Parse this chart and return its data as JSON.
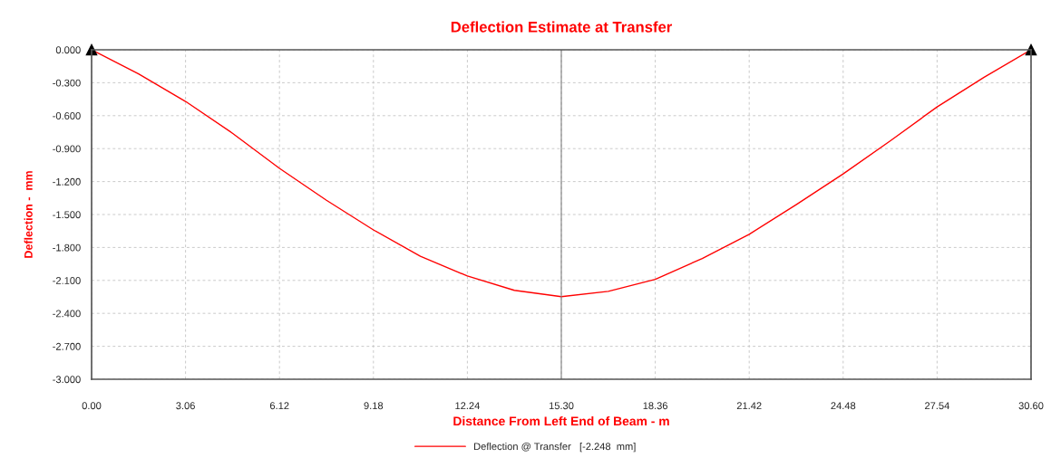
{
  "chart_data": {
    "type": "line",
    "title": "Deflection Estimate at Transfer",
    "xlabel": "Distance From Left End of Beam - m",
    "ylabel": "Deflection -  mm",
    "x": [
      0,
      1.53,
      3.06,
      4.59,
      6.12,
      7.65,
      9.18,
      10.71,
      12.24,
      13.77,
      15.3,
      16.83,
      18.36,
      19.89,
      21.42,
      22.95,
      24.48,
      26.01,
      27.54,
      29.07,
      30.6
    ],
    "series": [
      {
        "name": "Deflection @ Transfer   [-2.248  mm]",
        "color": "#ff0000",
        "values": [
          0,
          -0.22,
          -0.47,
          -0.76,
          -1.08,
          -1.37,
          -1.64,
          -1.88,
          -2.06,
          -2.19,
          -2.248,
          -2.2,
          -2.09,
          -1.9,
          -1.68,
          -1.41,
          -1.13,
          -0.83,
          -0.52,
          -0.25,
          0
        ]
      }
    ],
    "xlim": [
      0,
      30.6
    ],
    "xticks": [
      {
        "value": 0,
        "label": "0.00"
      },
      3.06,
      6.12,
      9.18,
      12.24,
      {
        "value": 15.3,
        "label": "15.30"
      },
      18.36,
      21.42,
      24.48,
      27.54,
      {
        "value": 30.6,
        "label": "30.60"
      }
    ],
    "ylim": [
      -3.0,
      0
    ],
    "yticks": [
      {
        "value": 0,
        "label": "0.000"
      },
      {
        "value": -0.3,
        "label": "-0.300"
      },
      {
        "value": -0.6,
        "label": "-0.600"
      },
      {
        "value": -0.9,
        "label": "-0.900"
      },
      {
        "value": -1.2,
        "label": "-1.200"
      },
      {
        "value": -1.5,
        "label": "-1.500"
      },
      {
        "value": -1.8,
        "label": "-1.800"
      },
      {
        "value": -2.1,
        "label": "-2.100"
      },
      {
        "value": -2.4,
        "label": "-2.400"
      },
      {
        "value": -2.7,
        "label": "-2.700"
      },
      {
        "value": -3.0,
        "label": "-3.000"
      }
    ],
    "ref_lines": [
      {
        "axis": "x",
        "value": 15.3,
        "color": "#808080"
      }
    ],
    "grid": true,
    "legend": "bottom",
    "marker": "none",
    "line_style": "solid"
  }
}
